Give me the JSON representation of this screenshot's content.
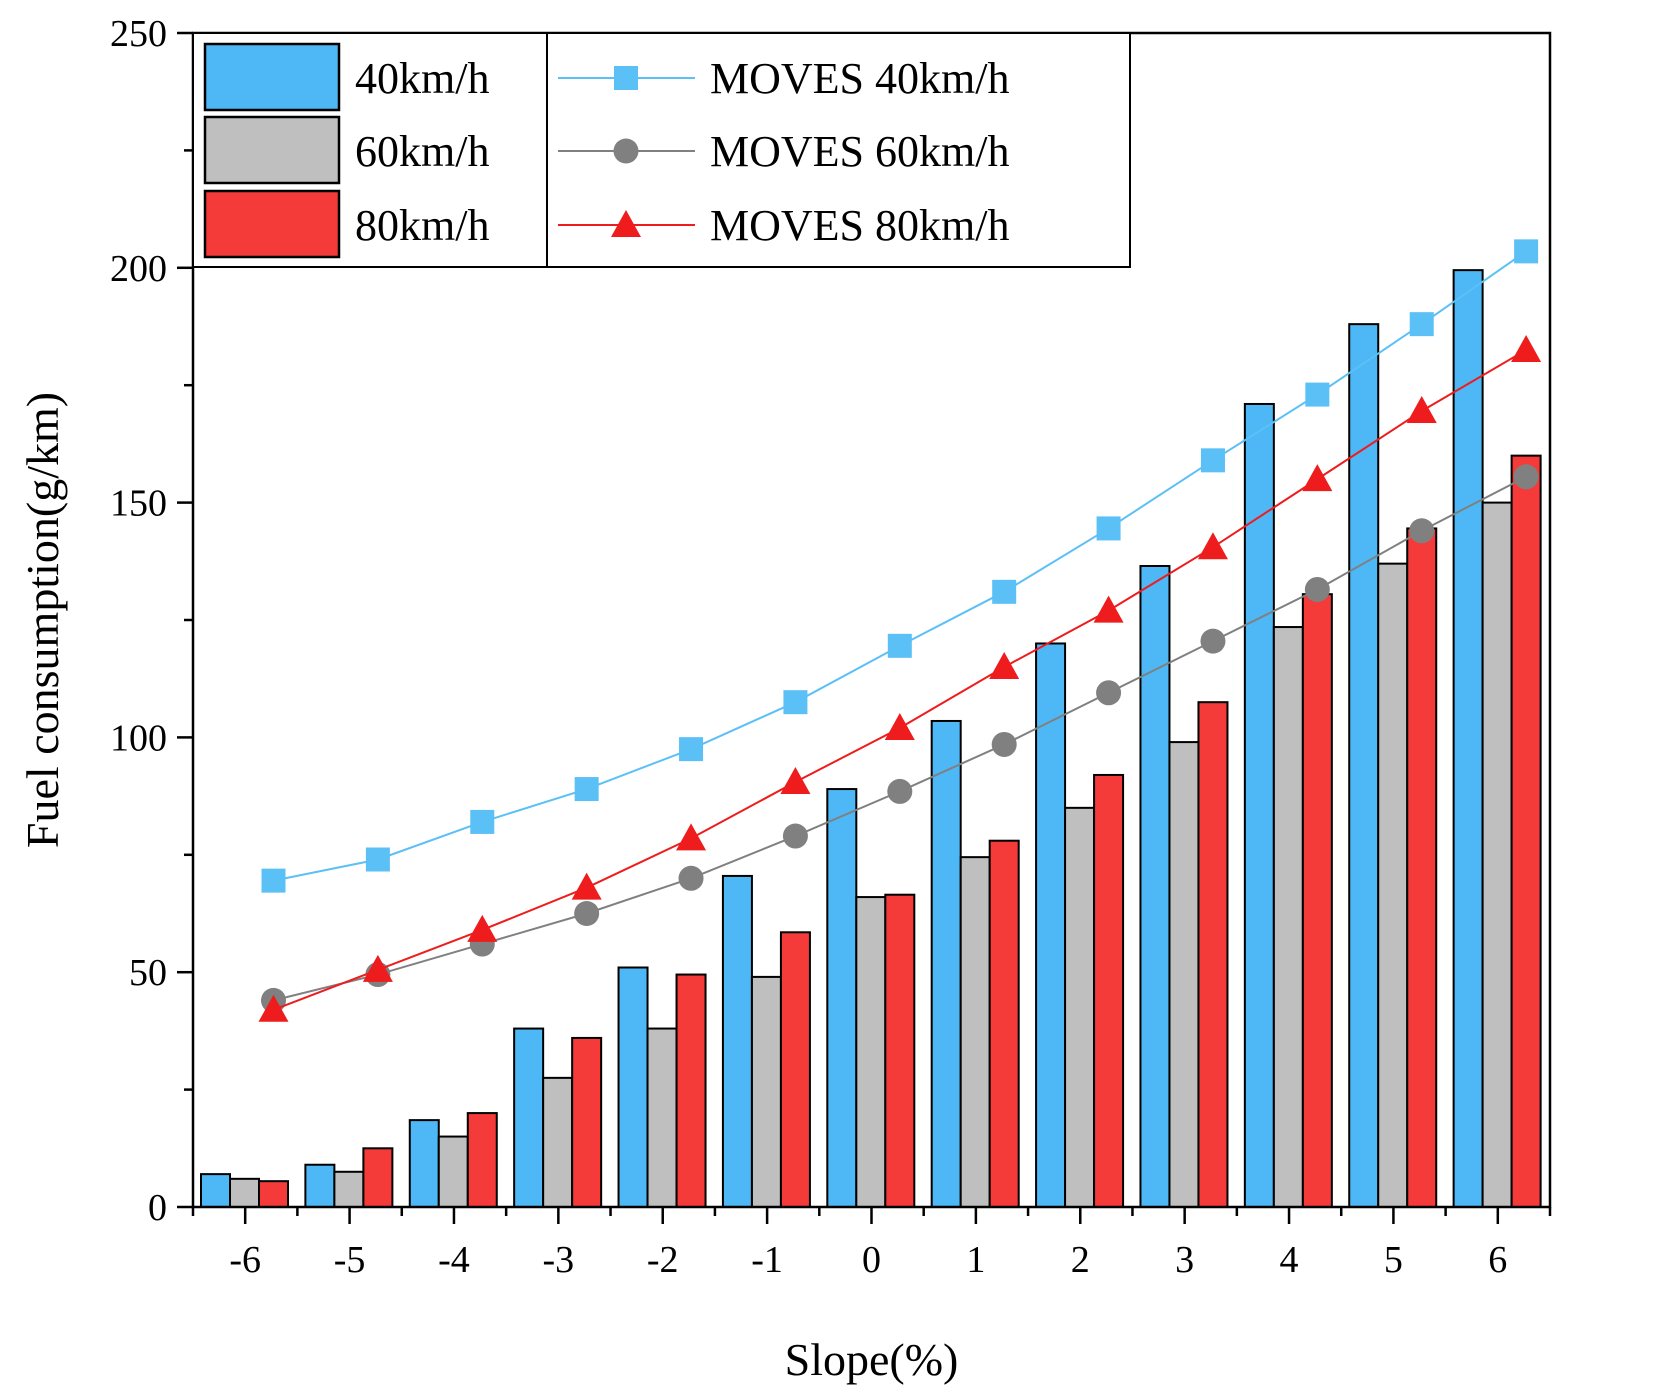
{
  "chart_data": {
    "type": "bar",
    "categories": [
      "-6",
      "-5",
      "-4",
      "-3",
      "-2",
      "-1",
      "0",
      "1",
      "2",
      "3",
      "4",
      "5",
      "6"
    ],
    "xlabel": "Slope(%)",
    "ylabel": "Fuel consumption(g/km)",
    "ylim": [
      0,
      250
    ],
    "yticks": [
      "0",
      "50",
      "100",
      "150",
      "200",
      "250"
    ],
    "grid": false,
    "legend_position": "top-left",
    "series": [
      {
        "name": "40km/h",
        "kind": "bar",
        "color": "#4db8f5",
        "values": [
          7,
          9,
          18.5,
          38,
          51,
          70.5,
          89,
          103.5,
          120,
          136.5,
          171,
          188,
          199.5
        ]
      },
      {
        "name": "60km/h",
        "kind": "bar",
        "color": "#bfbfbf",
        "values": [
          6,
          7.5,
          15,
          27.5,
          38,
          49,
          66,
          74.5,
          85,
          99,
          123.5,
          137,
          150
        ]
      },
      {
        "name": "80km/h",
        "kind": "bar",
        "color": "#f53a3a",
        "values": [
          5.5,
          12.5,
          20,
          36,
          49.5,
          58.5,
          66.5,
          78,
          92,
          107.5,
          130.5,
          144.5,
          160
        ]
      },
      {
        "name": "MOVES 40km/h",
        "kind": "line",
        "marker": "square",
        "color": "#5bc0f5",
        "values": [
          69.5,
          74,
          82,
          89,
          97.5,
          107.5,
          119.5,
          131,
          144.5,
          159,
          173,
          188,
          203.5
        ]
      },
      {
        "name": "MOVES 60km/h",
        "kind": "line",
        "marker": "circle",
        "color": "#808080",
        "values": [
          44,
          49.5,
          56,
          62.5,
          70,
          79,
          88.5,
          98.5,
          109.5,
          120.5,
          131.5,
          144,
          155.5
        ]
      },
      {
        "name": "MOVES 80km/h",
        "kind": "line",
        "marker": "triangle",
        "color": "#ee1c1c",
        "values": [
          42,
          50.5,
          59,
          68,
          78.5,
          90.5,
          102,
          115,
          127,
          140.5,
          155,
          169.5,
          182.5
        ]
      }
    ]
  }
}
